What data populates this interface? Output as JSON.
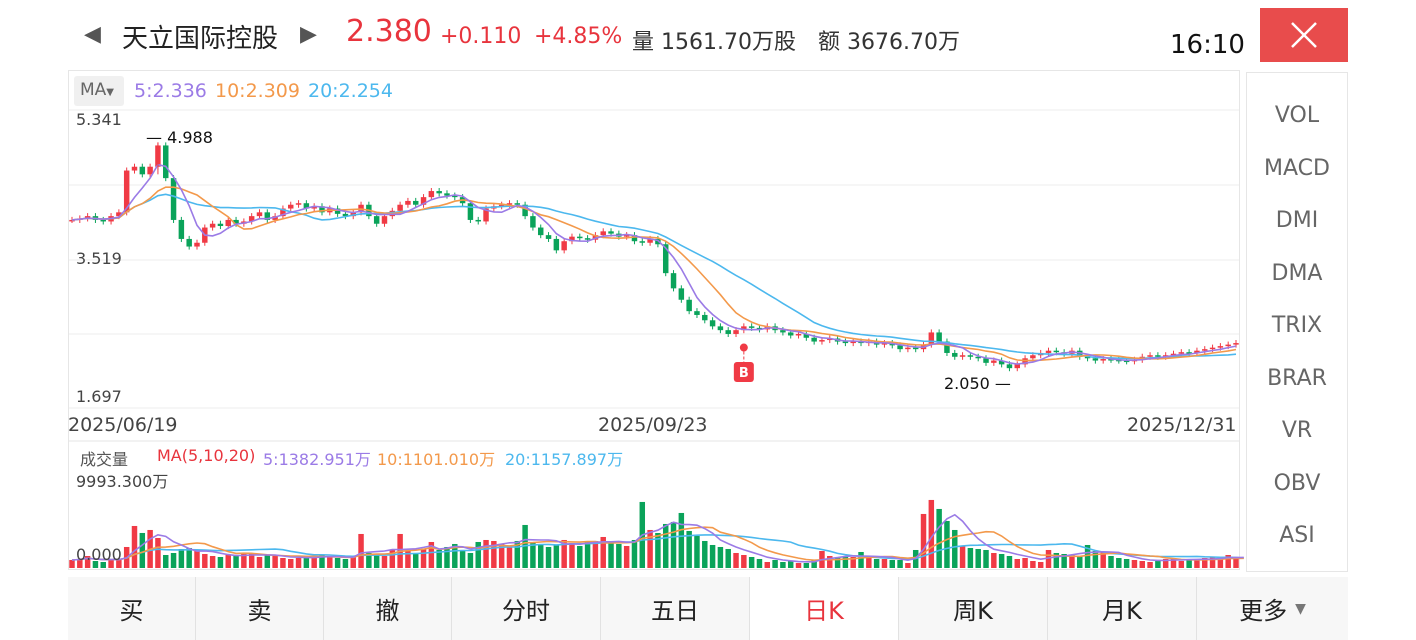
{
  "header": {
    "prev_arrow": "◀",
    "next_arrow": "▶",
    "stock_name": "天立国际控股",
    "price": "2.380",
    "change": "+0.110",
    "change_pct": "+4.85%",
    "volume": "量 1561.70万股",
    "amount": "额 3676.70万",
    "time": "16:10"
  },
  "chart": {
    "ma_badge": "MA",
    "ma5": "5:2.336",
    "ma10": "10:2.309",
    "ma20": "20:2.254",
    "y_top": "5.341",
    "y_mid": "3.519",
    "y_bottom": "1.697",
    "high_mark": "4.988",
    "low_mark": "2.050",
    "buy_marker": "B",
    "dates": [
      "2025/06/19",
      "2025/09/23",
      "2025/12/31"
    ],
    "colors": {
      "up": "#f03a45",
      "down": "#0aa35a",
      "ma5": "#9b7be6",
      "ma10": "#f3994b",
      "ma20": "#4cb8ee"
    }
  },
  "volume": {
    "title": "成交量",
    "ma_label": "MA(5,10,20)",
    "ma5": "5:1382.951万",
    "ma10": "10:1101.010万",
    "ma20": "20:1157.897万",
    "y_top": "9993.300万",
    "y_bottom": "0.000"
  },
  "side_indicators": [
    "VOL",
    "MACD",
    "DMI",
    "DMA",
    "TRIX",
    "BRAR",
    "VR",
    "OBV",
    "ASI"
  ],
  "bottom_tabs": [
    "买",
    "卖",
    "撤",
    "分时",
    "五日",
    "日K",
    "周K",
    "月K",
    "更多"
  ],
  "active_tab": "日K",
  "chart_data": {
    "type": "candlestick",
    "price_range": [
      1.697,
      5.341
    ],
    "x_labels": [
      "2025/06/19",
      "2025/09/23",
      "2025/12/31"
    ],
    "high": 4.988,
    "low": 2.05,
    "last_close": 2.38,
    "ma": {
      "ma5": 2.336,
      "ma10": 2.309,
      "ma20": 2.254
    },
    "volume_range": [
      0,
      9993.3
    ],
    "volume_ma": {
      "ma5": 1382.951,
      "ma10": 1101.01,
      "ma20": 1157.897
    },
    "close_series": [
      4.0,
      4.02,
      4.05,
      4.0,
      3.98,
      4.05,
      4.1,
      4.65,
      4.7,
      4.6,
      4.7,
      4.98,
      4.55,
      4.0,
      3.75,
      3.65,
      3.7,
      3.9,
      3.95,
      3.92,
      4.0,
      3.95,
      3.98,
      4.05,
      4.1,
      4.0,
      4.05,
      4.15,
      4.2,
      4.22,
      4.15,
      4.18,
      4.1,
      4.15,
      4.08,
      4.05,
      4.1,
      4.2,
      4.05,
      3.95,
      4.05,
      4.12,
      4.2,
      4.25,
      4.2,
      4.3,
      4.38,
      4.35,
      4.32,
      4.3,
      4.22,
      4.0,
      3.98,
      4.15,
      4.18,
      4.2,
      4.22,
      4.2,
      4.05,
      3.9,
      3.8,
      3.75,
      3.6,
      3.72,
      3.78,
      3.76,
      3.74,
      3.8,
      3.85,
      3.82,
      3.78,
      3.8,
      3.72,
      3.7,
      3.75,
      3.68,
      3.3,
      3.1,
      2.95,
      2.8,
      2.75,
      2.68,
      2.6,
      2.55,
      2.5,
      2.55,
      2.6,
      2.58,
      2.56,
      2.6,
      2.55,
      2.52,
      2.48,
      2.5,
      2.45,
      2.4,
      2.42,
      2.44,
      2.4,
      2.38,
      2.4,
      2.38,
      2.4,
      2.36,
      2.38,
      2.35,
      2.3,
      2.32,
      2.3,
      2.36,
      2.52,
      2.4,
      2.25,
      2.2,
      2.22,
      2.2,
      2.18,
      2.12,
      2.15,
      2.1,
      2.05,
      2.1,
      2.18,
      2.22,
      2.25,
      2.28,
      2.26,
      2.24,
      2.28,
      2.2,
      2.18,
      2.15,
      2.17,
      2.16,
      2.15,
      2.14,
      2.16,
      2.2,
      2.22,
      2.2,
      2.22,
      2.24,
      2.26,
      2.25,
      2.28,
      2.3,
      2.32,
      2.34,
      2.36,
      2.38
    ],
    "volume_series": [
      800,
      900,
      1200,
      700,
      600,
      800,
      900,
      2100,
      4200,
      3500,
      3800,
      3000,
      1300,
      1500,
      1900,
      2000,
      1700,
      1400,
      1200,
      1100,
      1300,
      1200,
      1500,
      1400,
      1100,
      1300,
      1200,
      1000,
      900,
      1000,
      1100,
      1200,
      1300,
      1100,
      1000,
      900,
      1100,
      3400,
      1500,
      1300,
      1200,
      1800,
      3400,
      1700,
      1500,
      1900,
      2600,
      1800,
      2100,
      2400,
      1700,
      1500,
      2600,
      2800,
      2700,
      2400,
      2100,
      2700,
      4300,
      2600,
      2300,
      2100,
      2300,
      2800,
      2500,
      2200,
      2600,
      2700,
      3100,
      2500,
      2400,
      2200,
      2800,
      6600,
      3800,
      3500,
      4400,
      4600,
      5500,
      3700,
      3200,
      2700,
      2300,
      2100,
      1900,
      1500,
      1300,
      1100,
      900,
      600,
      800,
      600,
      700,
      500,
      500,
      800,
      1700,
      1200,
      1000,
      1100,
      1100,
      1600,
      1100,
      900,
      900,
      800,
      800,
      500,
      1800,
      5400,
      6800,
      5900,
      4700,
      3800,
      2200,
      2000,
      1900,
      1800,
      1500,
      1400,
      1200,
      900,
      1000,
      700,
      600,
      1800,
      1500,
      1400,
      1300,
      1200,
      2300,
      1700,
      1600,
      1200,
      1000,
      900,
      800,
      700,
      600,
      800,
      900,
      1000,
      700,
      800,
      900,
      1000,
      1100,
      900,
      1300,
      900,
      1100
    ]
  }
}
